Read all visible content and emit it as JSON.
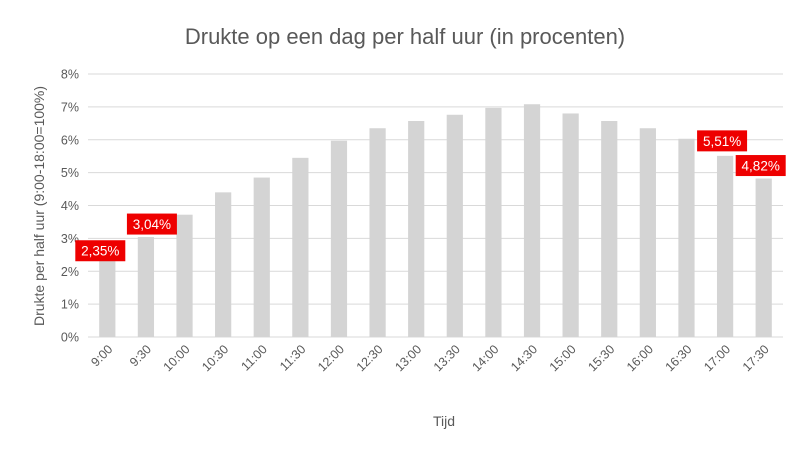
{
  "chart_data": {
    "type": "bar",
    "title": "Drukte op een dag per half uur (in procenten)",
    "xlabel": "Tijd",
    "ylabel": "Drukte per half uur (9:00-18:00=100%)",
    "categories": [
      "9:00",
      "9:30",
      "10:00",
      "10:30",
      "11:00",
      "11:30",
      "12:00",
      "12:30",
      "13:00",
      "13:30",
      "14:00",
      "14:30",
      "15:00",
      "15:30",
      "16:00",
      "16:30",
      "17:00",
      "17:30"
    ],
    "values": [
      2.35,
      3.04,
      3.72,
      4.4,
      4.85,
      5.45,
      5.97,
      6.35,
      6.57,
      6.76,
      6.97,
      7.08,
      6.8,
      6.57,
      6.35,
      6.03,
      5.51,
      4.82
    ],
    "ylim": [
      0,
      8
    ],
    "yticks": [
      "0%",
      "1%",
      "2%",
      "3%",
      "4%",
      "5%",
      "6%",
      "7%",
      "8%"
    ],
    "grid": true,
    "bar_color": "#d4d4d4",
    "label_color": "#ee0000",
    "data_labels": [
      {
        "index": 0,
        "text": "2,35%"
      },
      {
        "index": 1,
        "text": "3,04%"
      },
      {
        "index": 16,
        "text": "5,51%"
      },
      {
        "index": 17,
        "text": "4,82%"
      }
    ]
  }
}
